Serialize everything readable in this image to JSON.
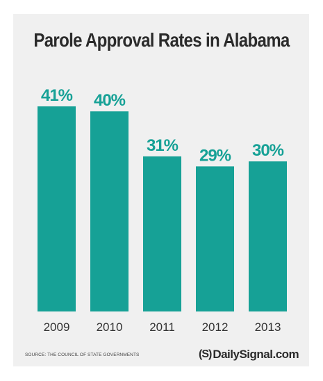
{
  "colors": {
    "bar": "#16a196",
    "value_label": "#16a196",
    "panel_background": "#f0f0f0",
    "title": "#2b2b2b"
  },
  "chart_data": {
    "type": "bar",
    "title": "Parole Approval Rates in Alabama",
    "categories": [
      "2009",
      "2010",
      "2011",
      "2012",
      "2013"
    ],
    "values": [
      41,
      40,
      31,
      29,
      30
    ],
    "value_labels": [
      "41%",
      "40%",
      "31%",
      "29%",
      "30%"
    ],
    "xlabel": "",
    "ylabel": "",
    "ylim": [
      0,
      41
    ],
    "grid": false,
    "legend": "none"
  },
  "footer": {
    "source": "SOURCE: THE COUNCIL OF STATE GOVERNMENTS",
    "brand_logo": "(S)",
    "brand_name": "DailySignal.com"
  }
}
